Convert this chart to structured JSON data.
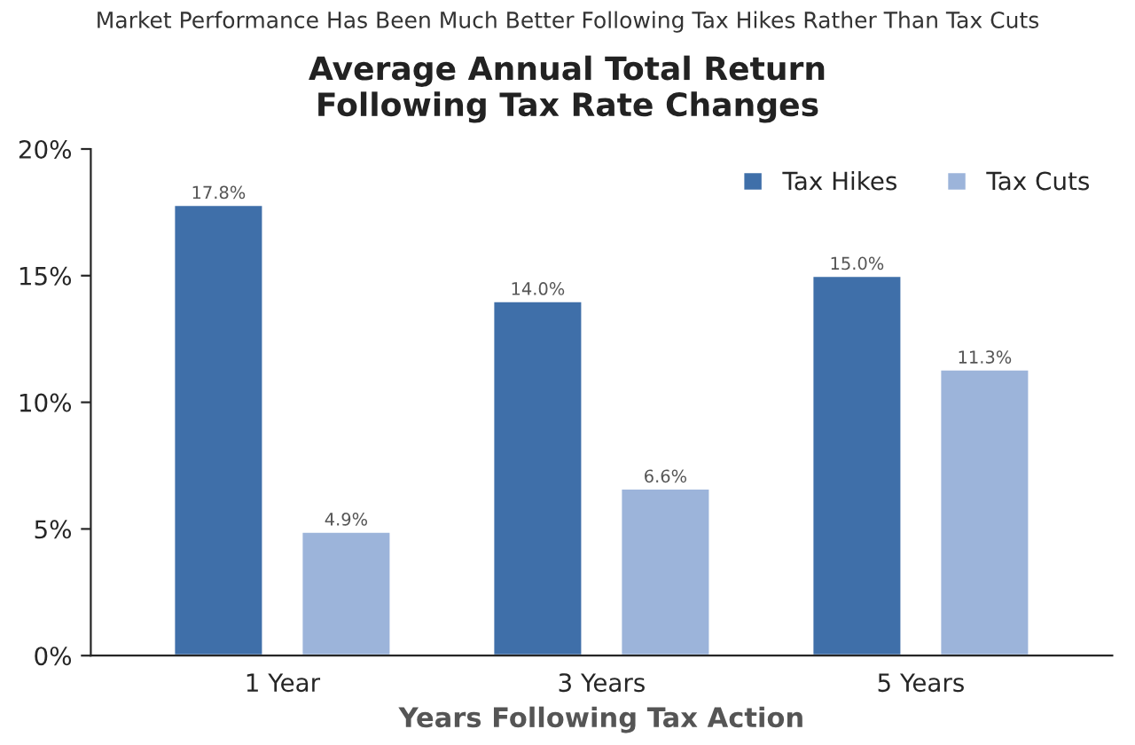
{
  "chart_data": {
    "type": "bar",
    "subtitle": "Market Performance Has Been Much Better Following Tax Hikes Rather Than Tax Cuts",
    "title": "Average Annual Total Return\nFollowing Tax Rate Changes",
    "xlabel": "Years Following Tax Action",
    "categories": [
      "1 Year",
      "3 Years",
      "5 Years"
    ],
    "series": [
      {
        "name": "Tax Hikes",
        "color": "#3f6fa9",
        "values": [
          17.8,
          14.0,
          15.0
        ],
        "value_labels": [
          "17.8%",
          "14.0%",
          "15.0%"
        ]
      },
      {
        "name": "Tax Cuts",
        "color": "#9cb4da",
        "values": [
          4.9,
          6.6,
          11.3
        ],
        "value_labels": [
          "4.9%",
          "6.6%",
          "11.3%"
        ]
      }
    ],
    "ylim": [
      0,
      20
    ],
    "yticks": [
      {
        "value": 0,
        "label": "0%"
      },
      {
        "value": 5,
        "label": "5%"
      },
      {
        "value": 10,
        "label": "10%"
      },
      {
        "value": 15,
        "label": "15%"
      },
      {
        "value": 20,
        "label": "20%"
      }
    ],
    "grid": false,
    "legend": "top right"
  }
}
